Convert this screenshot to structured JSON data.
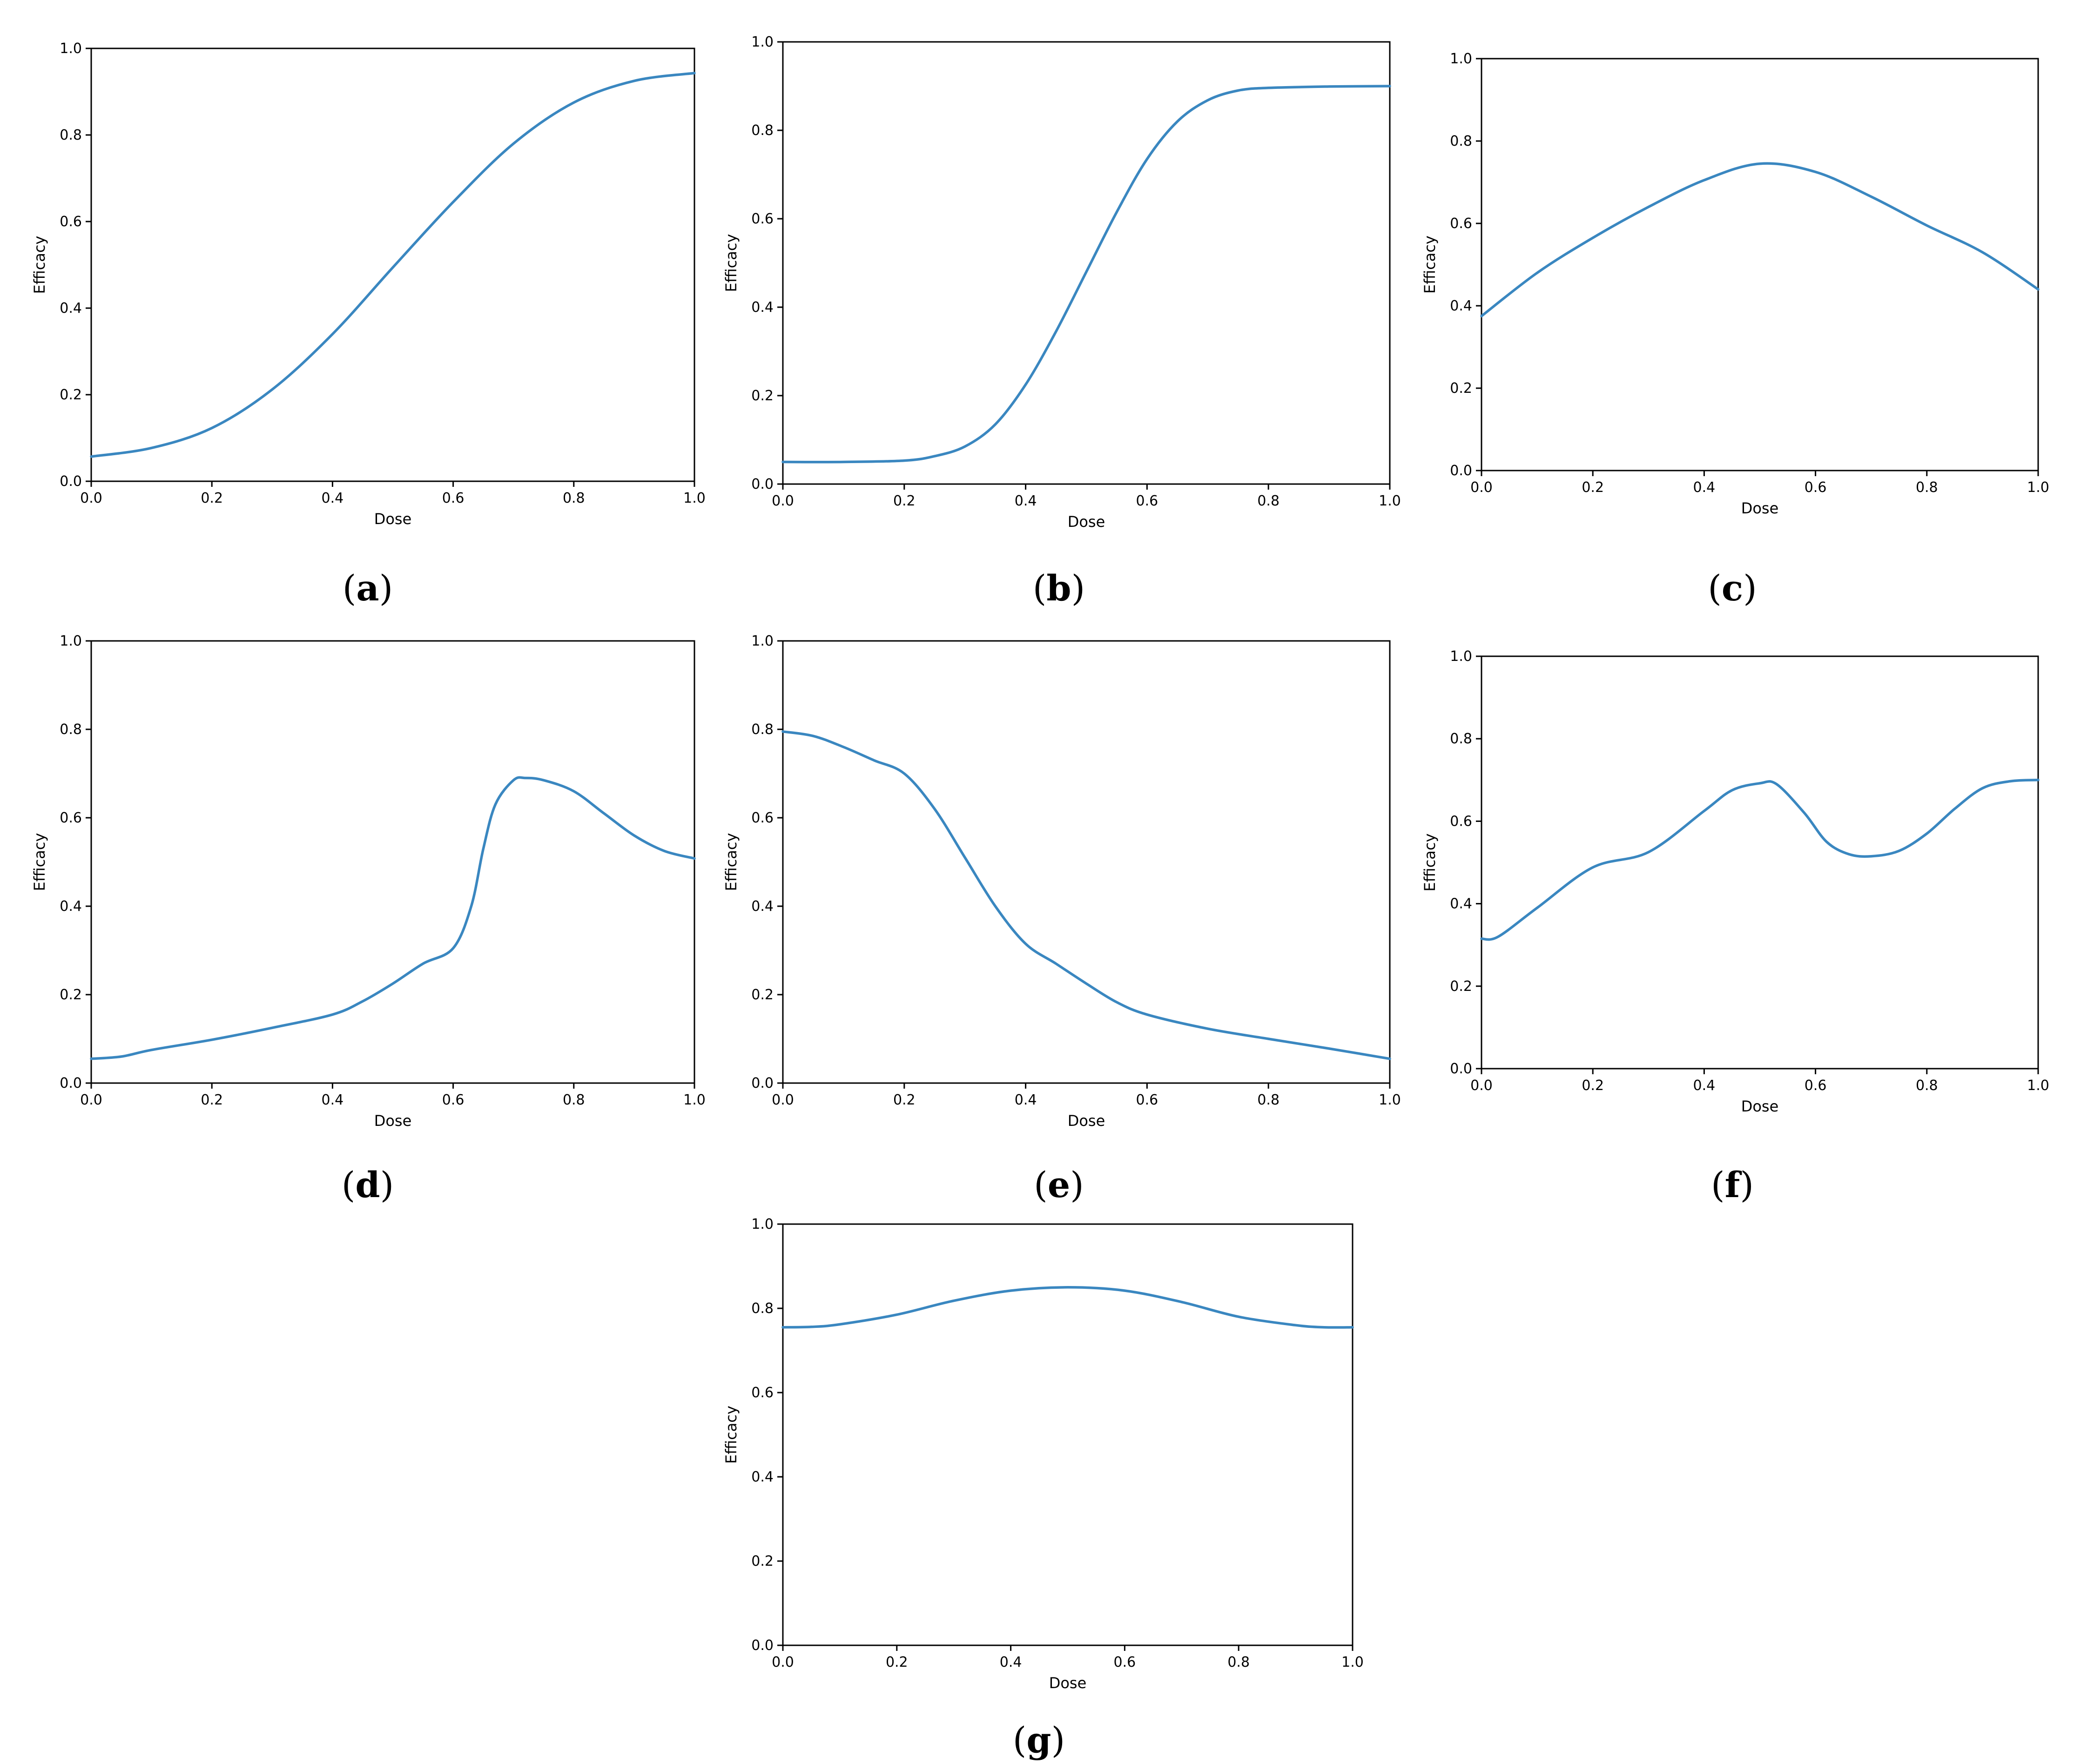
{
  "figure": {
    "line_color": "#3a87c0"
  },
  "chart_data": [
    {
      "id": "a",
      "panel_label": "a",
      "type": "line",
      "xlabel": "Dose",
      "ylabel": "Efficacy",
      "xlim": [
        0,
        1
      ],
      "ylim": [
        0,
        1
      ],
      "xticks": [
        "0.0",
        "0.2",
        "0.4",
        "0.6",
        "0.8",
        "1.0"
      ],
      "yticks": [
        "0.0",
        "0.2",
        "0.4",
        "0.6",
        "0.8",
        "1.0"
      ],
      "grid": false,
      "legend": "none",
      "series": [
        {
          "x": [
            0,
            0.1,
            0.2,
            0.3,
            0.4,
            0.5,
            0.6,
            0.7,
            0.8,
            0.9,
            1.0
          ],
          "y": [
            0.057,
            0.077,
            0.123,
            0.212,
            0.34,
            0.494,
            0.645,
            0.78,
            0.875,
            0.925,
            0.943
          ]
        }
      ]
    },
    {
      "id": "b",
      "panel_label": "b",
      "type": "line",
      "xlabel": "Dose",
      "ylabel": "Efficacy",
      "xlim": [
        0,
        1
      ],
      "ylim": [
        0,
        1
      ],
      "xticks": [
        "0.0",
        "0.2",
        "0.4",
        "0.6",
        "0.8",
        "1.0"
      ],
      "yticks": [
        "0.0",
        "0.2",
        "0.4",
        "0.6",
        "0.8",
        "1.0"
      ],
      "grid": false,
      "legend": "none",
      "series": [
        {
          "x": [
            0,
            0.1,
            0.2,
            0.25,
            0.3,
            0.35,
            0.4,
            0.45,
            0.5,
            0.55,
            0.6,
            0.65,
            0.7,
            0.75,
            0.8,
            0.9,
            1.0
          ],
          "y": [
            0.05,
            0.05,
            0.053,
            0.063,
            0.085,
            0.135,
            0.225,
            0.345,
            0.48,
            0.615,
            0.735,
            0.82,
            0.868,
            0.89,
            0.896,
            0.899,
            0.9
          ]
        }
      ]
    },
    {
      "id": "c",
      "panel_label": "c",
      "type": "line",
      "xlabel": "Dose",
      "ylabel": "Efficacy",
      "xlim": [
        0,
        1
      ],
      "ylim": [
        0,
        1
      ],
      "xticks": [
        "0.0",
        "0.2",
        "0.4",
        "0.6",
        "0.8",
        "1.0"
      ],
      "yticks": [
        "0.0",
        "0.2",
        "0.4",
        "0.6",
        "0.8",
        "1.0"
      ],
      "grid": false,
      "legend": "none",
      "series": [
        {
          "x": [
            0,
            0.1,
            0.2,
            0.3,
            0.4,
            0.5,
            0.6,
            0.7,
            0.8,
            0.9,
            1.0
          ],
          "y": [
            0.375,
            0.48,
            0.565,
            0.64,
            0.705,
            0.745,
            0.725,
            0.665,
            0.595,
            0.53,
            0.44
          ]
        }
      ]
    },
    {
      "id": "d",
      "panel_label": "d",
      "type": "line",
      "xlabel": "Dose",
      "ylabel": "Efficacy",
      "xlim": [
        0,
        1
      ],
      "ylim": [
        0,
        1
      ],
      "xticks": [
        "0.0",
        "0.2",
        "0.4",
        "0.6",
        "0.8",
        "1.0"
      ],
      "yticks": [
        "0.0",
        "0.2",
        "0.4",
        "0.6",
        "0.8",
        "1.0"
      ],
      "grid": false,
      "legend": "none",
      "series": [
        {
          "x": [
            0,
            0.05,
            0.1,
            0.2,
            0.3,
            0.4,
            0.45,
            0.5,
            0.55,
            0.6,
            0.63,
            0.65,
            0.67,
            0.7,
            0.72,
            0.75,
            0.8,
            0.85,
            0.9,
            0.95,
            1.0
          ],
          "y": [
            0.055,
            0.06,
            0.075,
            0.098,
            0.125,
            0.155,
            0.185,
            0.225,
            0.27,
            0.305,
            0.4,
            0.53,
            0.63,
            0.685,
            0.69,
            0.685,
            0.66,
            0.61,
            0.56,
            0.525,
            0.508
          ]
        }
      ]
    },
    {
      "id": "e",
      "panel_label": "e",
      "type": "line",
      "xlabel": "Dose",
      "ylabel": "Efficacy",
      "xlim": [
        0,
        1
      ],
      "ylim": [
        0,
        1
      ],
      "xticks": [
        "0.0",
        "0.2",
        "0.4",
        "0.6",
        "0.8",
        "1.0"
      ],
      "yticks": [
        "0.0",
        "0.2",
        "0.4",
        "0.6",
        "0.8",
        "1.0"
      ],
      "grid": false,
      "legend": "none",
      "series": [
        {
          "x": [
            0,
            0.05,
            0.1,
            0.15,
            0.2,
            0.25,
            0.3,
            0.35,
            0.4,
            0.45,
            0.5,
            0.55,
            0.6,
            0.7,
            0.8,
            0.9,
            1.0
          ],
          "y": [
            0.795,
            0.785,
            0.76,
            0.73,
            0.7,
            0.62,
            0.51,
            0.4,
            0.315,
            0.27,
            0.225,
            0.183,
            0.155,
            0.123,
            0.1,
            0.078,
            0.055
          ]
        }
      ]
    },
    {
      "id": "f",
      "panel_label": "f",
      "type": "line",
      "xlabel": "Dose",
      "ylabel": "Efficacy",
      "xlim": [
        0,
        1
      ],
      "ylim": [
        0,
        1
      ],
      "xticks": [
        "0.0",
        "0.2",
        "0.4",
        "0.6",
        "0.8",
        "1.0"
      ],
      "yticks": [
        "0.0",
        "0.2",
        "0.4",
        "0.6",
        "0.8",
        "1.0"
      ],
      "grid": false,
      "legend": "none",
      "series": [
        {
          "x": [
            0,
            0.03,
            0.1,
            0.2,
            0.3,
            0.4,
            0.45,
            0.5,
            0.53,
            0.58,
            0.62,
            0.66,
            0.7,
            0.75,
            0.8,
            0.85,
            0.9,
            0.95,
            1.0
          ],
          "y": [
            0.315,
            0.32,
            0.39,
            0.488,
            0.525,
            0.625,
            0.675,
            0.692,
            0.69,
            0.62,
            0.55,
            0.52,
            0.515,
            0.528,
            0.57,
            0.63,
            0.68,
            0.697,
            0.7
          ]
        }
      ]
    },
    {
      "id": "g",
      "panel_label": "g",
      "type": "line",
      "xlabel": "Dose",
      "ylabel": "Efficacy",
      "xlim": [
        0,
        1
      ],
      "ylim": [
        0,
        1
      ],
      "xticks": [
        "0.0",
        "0.2",
        "0.4",
        "0.6",
        "0.8",
        "1.0"
      ],
      "yticks": [
        "0.0",
        "0.2",
        "0.4",
        "0.6",
        "0.8",
        "1.0"
      ],
      "grid": false,
      "legend": "none",
      "series": [
        {
          "x": [
            0,
            0.05,
            0.1,
            0.2,
            0.3,
            0.4,
            0.5,
            0.6,
            0.7,
            0.8,
            0.9,
            0.95,
            1.0
          ],
          "y": [
            0.755,
            0.756,
            0.762,
            0.785,
            0.818,
            0.842,
            0.85,
            0.842,
            0.815,
            0.78,
            0.76,
            0.755,
            0.755
          ]
        }
      ]
    }
  ]
}
